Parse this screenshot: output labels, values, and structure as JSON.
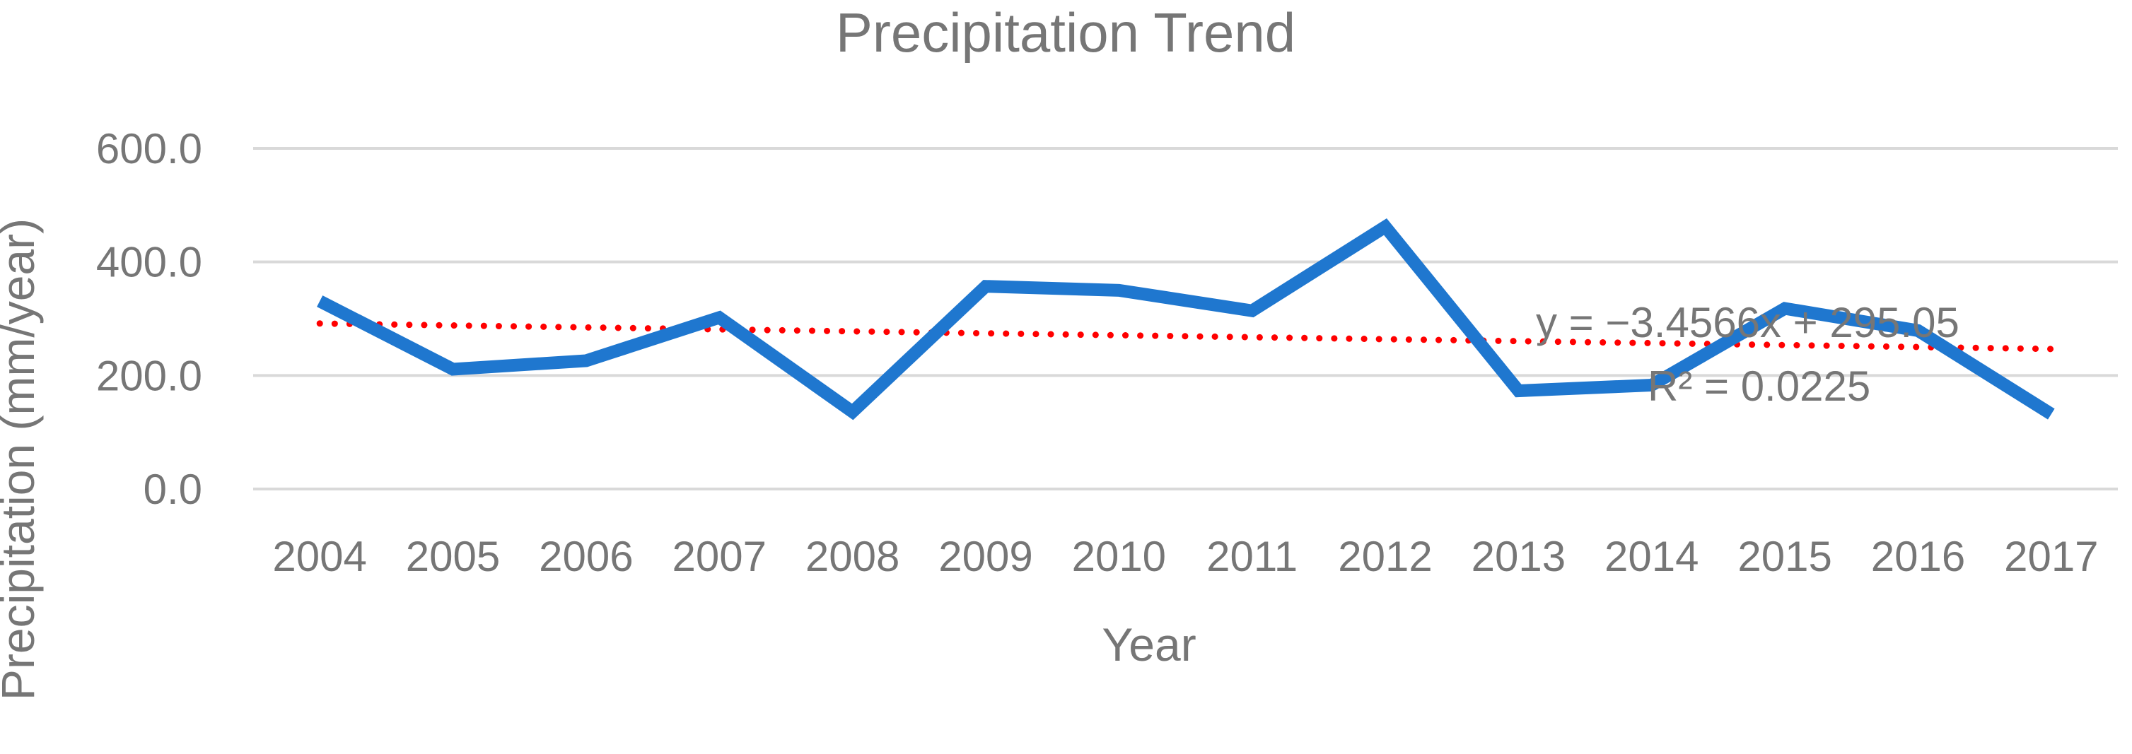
{
  "chart_data": {
    "type": "line",
    "title": "Precipitation Trend",
    "xlabel": "Year",
    "ylabel": "Precipitation (mm/year)",
    "categories": [
      "2004",
      "2005",
      "2006",
      "2007",
      "2008",
      "2009",
      "2010",
      "2011",
      "2012",
      "2013",
      "2014",
      "2015",
      "2016",
      "2017"
    ],
    "series": [
      {
        "values": [
          331,
          211,
          226,
          302,
          136,
          357,
          350,
          314,
          462,
          173,
          183,
          318,
          279,
          132
        ],
        "color": "#1F77CF"
      }
    ],
    "ylim": [
      0,
      600
    ],
    "yticks": [
      "0.0",
      "200.0",
      "400.0",
      "600.0"
    ],
    "yticks_values": [
      0,
      200,
      400,
      600
    ],
    "grid": true,
    "trendline": {
      "type": "linear",
      "color": "#FF0000",
      "slope": -3.4566,
      "intercept": 295.05,
      "equation": "y = −3.4566x + 295.05",
      "r_squared": "R² = 0.0225"
    }
  }
}
